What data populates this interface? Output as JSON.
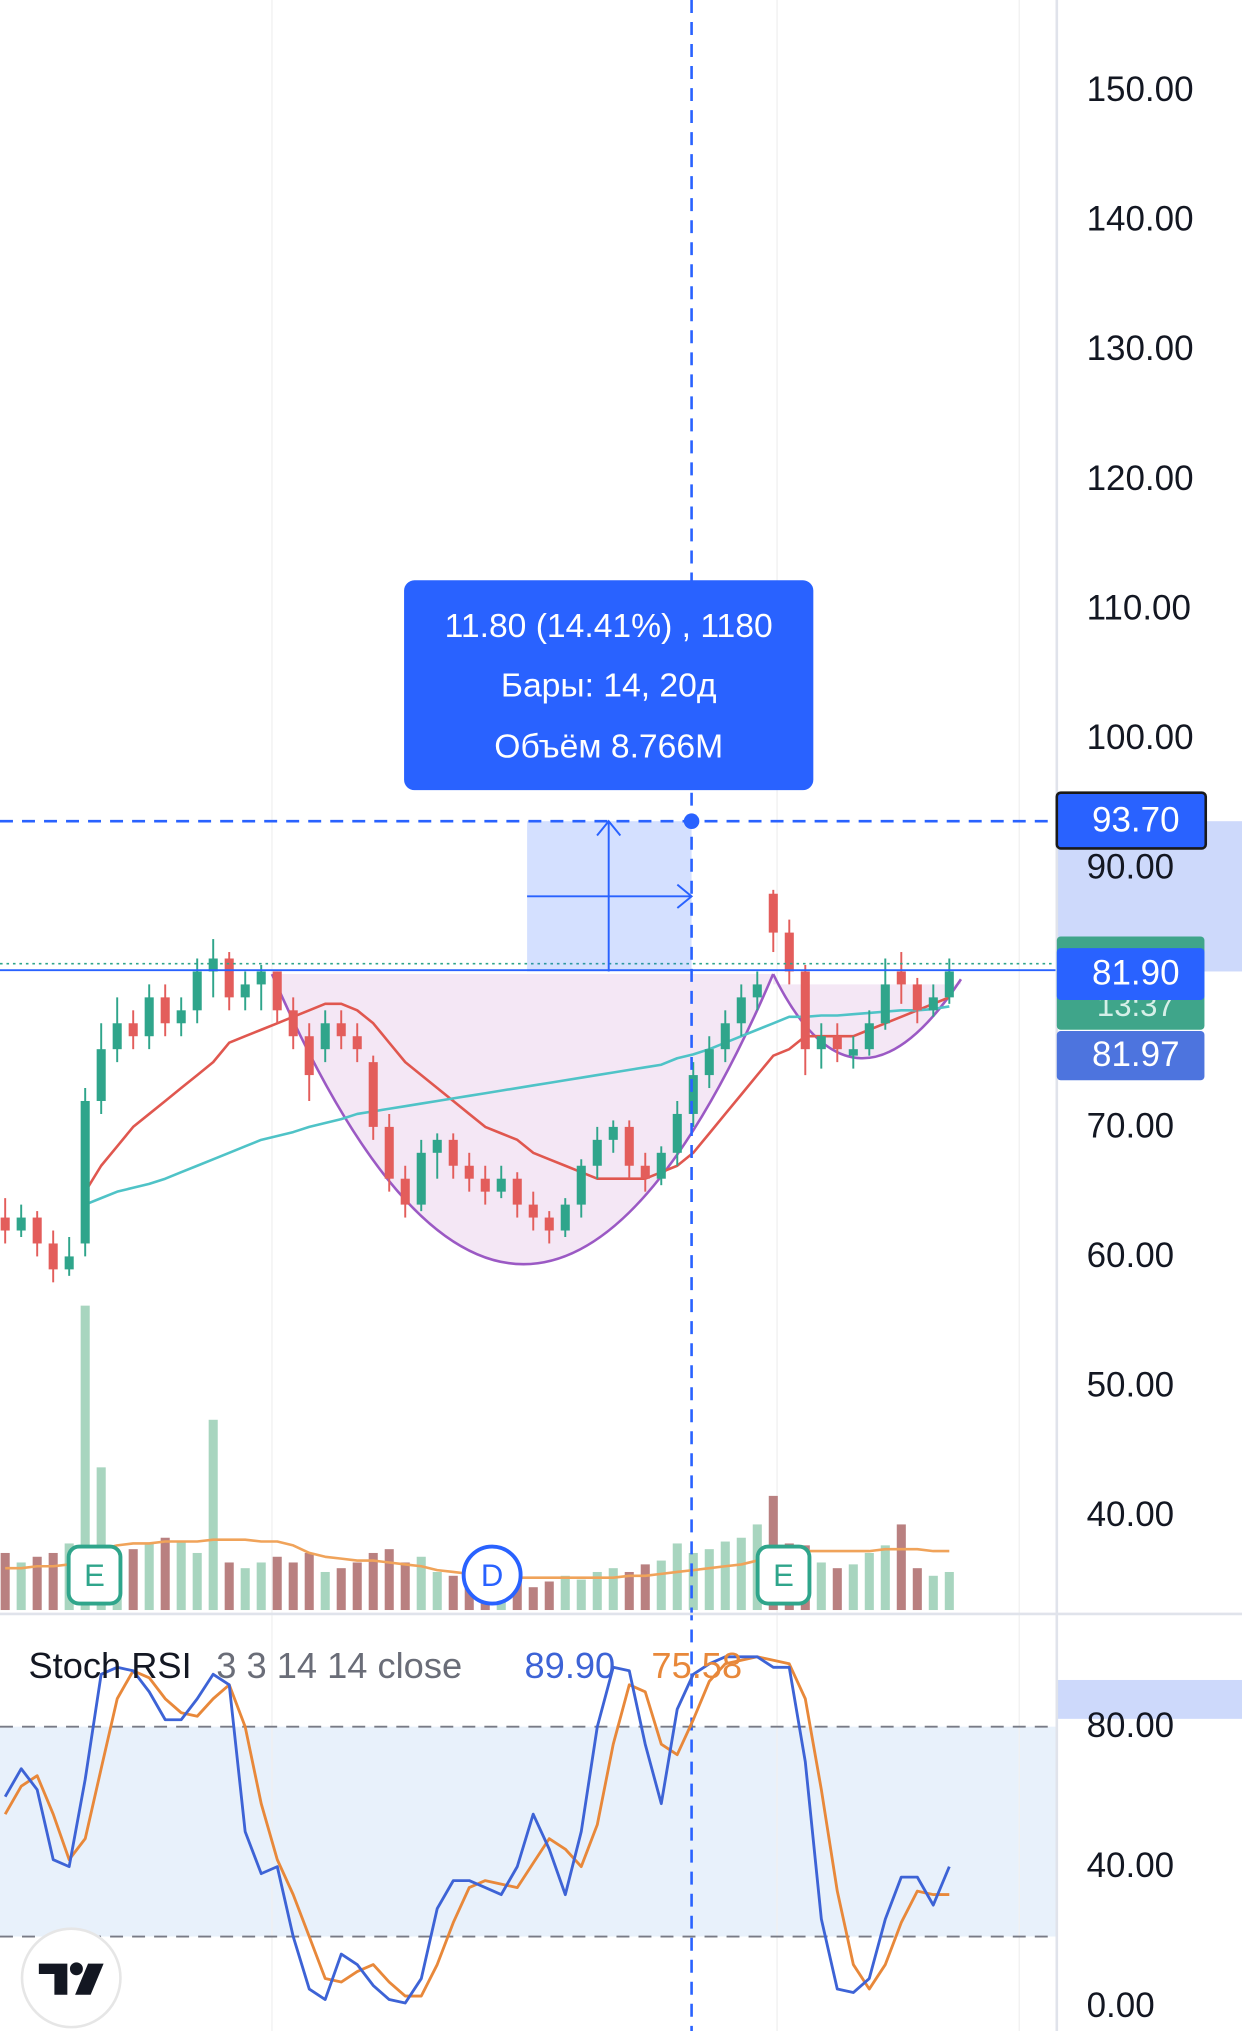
{
  "chart_data": {
    "type": "candlestick",
    "open": [
      63,
      62,
      63,
      61,
      59,
      61,
      72,
      76,
      78,
      77,
      80,
      78,
      79,
      82,
      83,
      80,
      81,
      82,
      79,
      77,
      76,
      78,
      77,
      75,
      70,
      66,
      64,
      68,
      69,
      67,
      66,
      65,
      66,
      64,
      63,
      62,
      64,
      67,
      69,
      70,
      67,
      66,
      68,
      71,
      74,
      76,
      78,
      80,
      88,
      85,
      82,
      76,
      77,
      75.5,
      76,
      78,
      82,
      81,
      79,
      80
    ],
    "high": [
      64.5,
      64,
      63.5,
      62,
      61.5,
      73,
      78,
      80,
      79,
      81,
      81,
      80,
      83,
      84.5,
      83.5,
      82,
      82.5,
      82,
      80,
      78,
      79,
      79,
      78,
      75.5,
      71,
      67,
      69,
      69.5,
      69.5,
      68,
      67,
      67,
      66.5,
      65,
      63.5,
      64.5,
      67.5,
      70,
      70.5,
      70.5,
      68,
      68.5,
      72,
      75,
      77,
      79,
      81,
      82,
      88.3,
      86,
      82.5,
      78,
      78,
      77,
      79,
      83,
      83.5,
      81.5,
      81,
      83
    ],
    "low": [
      61,
      61.5,
      60,
      58,
      58.5,
      60,
      71,
      75,
      76,
      76,
      77,
      77,
      78,
      80,
      79,
      79,
      79,
      78,
      76,
      72,
      75,
      76,
      75,
      69,
      65,
      63,
      63.5,
      66,
      66,
      65,
      64,
      64.5,
      63,
      62,
      61,
      61.5,
      63,
      66,
      68,
      66,
      65,
      65.5,
      67,
      70,
      73,
      75,
      77,
      79,
      83.5,
      81,
      74,
      74.5,
      75,
      74.5,
      75.5,
      77.5,
      79.5,
      78,
      78.5,
      79.5
    ],
    "close": [
      62,
      63,
      61,
      59,
      60,
      72,
      76,
      78,
      77,
      80,
      78,
      79,
      82,
      83,
      80,
      81,
      82,
      79,
      77,
      74,
      78,
      77,
      76,
      70,
      66,
      64,
      68,
      69,
      67,
      66,
      65,
      66,
      64,
      63,
      62,
      64,
      67,
      69,
      70,
      67,
      66,
      68,
      71,
      74,
      76,
      78,
      80,
      81,
      85,
      82,
      76,
      77,
      76,
      76,
      78,
      81,
      81,
      79,
      80,
      82
    ],
    "up_color": "#2fa58b",
    "down_color": "#e35d5b",
    "ylim": [
      32.5,
      157
    ],
    "yticks": [
      {
        "value": 40,
        "label": "40.00"
      },
      {
        "value": 50,
        "label": "50.00"
      },
      {
        "value": 60,
        "label": "60.00"
      },
      {
        "value": 70,
        "label": "70.00"
      },
      {
        "value": 80,
        "label": "80.00"
      },
      {
        "value": 90,
        "label": "90.00"
      },
      {
        "value": 100,
        "label": "100.00"
      },
      {
        "value": 110,
        "label": "110.00"
      },
      {
        "value": 120,
        "label": "120.00"
      },
      {
        "value": 130,
        "label": "130.00"
      },
      {
        "value": 140,
        "label": "140.00"
      },
      {
        "value": 150,
        "label": "150.00"
      }
    ],
    "grid": true,
    "moving_averages": [
      {
        "color": "#e0574f",
        "values": [
          null,
          null,
          null,
          null,
          null,
          65,
          67,
          68.5,
          70,
          71,
          72,
          73,
          74,
          75,
          76.5,
          77,
          77.5,
          78,
          78.5,
          79,
          79.5,
          79.5,
          79,
          78,
          76.5,
          75,
          74,
          73,
          72,
          71,
          70,
          69.5,
          69,
          68,
          67.5,
          67,
          66.5,
          66,
          66,
          66,
          66,
          66.5,
          67,
          68,
          69.5,
          71,
          72.5,
          74,
          75.5,
          76,
          77,
          77,
          77,
          77,
          77.5,
          78,
          78.5,
          79,
          79.5,
          80
        ]
      },
      {
        "color": "#4fc3c7",
        "values": [
          null,
          null,
          null,
          null,
          null,
          64,
          64.5,
          65,
          65.3,
          65.6,
          66,
          66.5,
          67,
          67.5,
          68,
          68.5,
          69,
          69.3,
          69.6,
          70,
          70.3,
          70.6,
          71,
          71.2,
          71.4,
          71.6,
          71.8,
          72,
          72.2,
          72.4,
          72.6,
          72.8,
          73,
          73.2,
          73.4,
          73.6,
          73.8,
          74,
          74.2,
          74.4,
          74.6,
          74.8,
          75.3,
          75.6,
          76,
          76.5,
          77,
          77.5,
          78,
          78.5,
          78.5,
          78.6,
          78.6,
          78.7,
          78.8,
          78.9,
          79,
          79,
          79.1,
          79.3
        ]
      }
    ],
    "volume": {
      "up_color": "#a8d5bf",
      "down_color": "#b98080",
      "ma_color": "#f0a35a",
      "values": [
        3,
        2.5,
        2.8,
        3,
        3.5,
        16,
        7.5,
        3,
        3.2,
        3.5,
        3.8,
        3.6,
        3,
        10,
        2.5,
        2.2,
        2.5,
        2.8,
        2.5,
        3,
        2,
        2.2,
        2.5,
        3,
        3.2,
        2.5,
        2.8,
        2,
        1.8,
        2,
        1.5,
        1.8,
        1.5,
        1.2,
        1.5,
        1.8,
        1.6,
        2,
        2.2,
        2,
        2.4,
        2.6,
        3.5,
        3,
        3.2,
        3.6,
        3.8,
        4.5,
        6,
        3.5,
        3.4,
        2.5,
        2.2,
        2.4,
        3,
        3.4,
        4.5,
        2.2,
        1.8,
        2
      ],
      "ma": [
        2.2,
        2.2,
        2.3,
        2.3,
        2.4,
        2.6,
        3.2,
        3.4,
        3.5,
        3.5,
        3.6,
        3.6,
        3.6,
        3.7,
        3.7,
        3.7,
        3.6,
        3.6,
        3.4,
        3.0,
        2.8,
        2.7,
        2.6,
        2.6,
        2.5,
        2.4,
        2.3,
        2.1,
        2.0,
        1.9,
        1.8,
        1.7,
        1.7,
        1.7,
        1.7,
        1.7,
        1.7,
        1.7,
        1.7,
        1.8,
        1.8,
        1.9,
        2.0,
        2.1,
        2.2,
        2.3,
        2.4,
        2.6,
        2.8,
        3.0,
        3.1,
        3.1,
        3.1,
        3.1,
        3.1,
        3.2,
        3.2,
        3.2,
        3.1,
        3.1
      ]
    },
    "price_labels": {
      "crosshair": "93.70",
      "last": "81.90",
      "countdown": "13:37",
      "previous": "81.97"
    },
    "measure": {
      "change": "11.80 (14.41%) , 1180",
      "bars": "Бары: 14, 20д",
      "volume": "Объём 8.766M"
    },
    "events": [
      "E",
      "D",
      "E"
    ],
    "indicator": {
      "type": "line",
      "name": "Stoch RSI",
      "params": "3 3 14 14 close",
      "ylim": [
        -7,
        111.5
      ],
      "yticks": [
        {
          "value": 0,
          "label": "0.00"
        },
        {
          "value": 40,
          "label": "40.00"
        },
        {
          "value": 80,
          "label": "80.00"
        }
      ],
      "levels": [
        20,
        80
      ],
      "series": [
        {
          "color": "#3d63d6",
          "current": "89.90",
          "values": [
            60,
            68,
            62,
            42,
            40,
            65,
            95,
            97,
            96,
            90,
            82,
            82,
            88,
            95,
            92,
            50,
            38,
            40,
            20,
            5,
            2,
            15,
            12,
            6,
            2,
            1,
            8,
            28,
            36,
            36,
            34,
            32,
            40,
            55,
            45,
            32,
            50,
            80,
            97,
            96,
            75,
            58,
            85,
            95,
            98,
            100,
            100,
            100,
            97,
            97,
            70,
            25,
            5,
            4,
            8,
            25,
            37,
            37,
            29,
            40
          ]
        },
        {
          "color": "#e8883a",
          "current": "75.58",
          "values": [
            55,
            63,
            66,
            55,
            42,
            48,
            68,
            88,
            96,
            94,
            88,
            84,
            83,
            88,
            92,
            80,
            58,
            42,
            32,
            20,
            8,
            7,
            10,
            12,
            7,
            3,
            3,
            12,
            24,
            34,
            36,
            35,
            34,
            41,
            48,
            45,
            40,
            52,
            75,
            92,
            90,
            75,
            72,
            82,
            93,
            98,
            99,
            100,
            99,
            98,
            88,
            62,
            33,
            12,
            5,
            12,
            24,
            33,
            32,
            32
          ]
        }
      ]
    }
  }
}
